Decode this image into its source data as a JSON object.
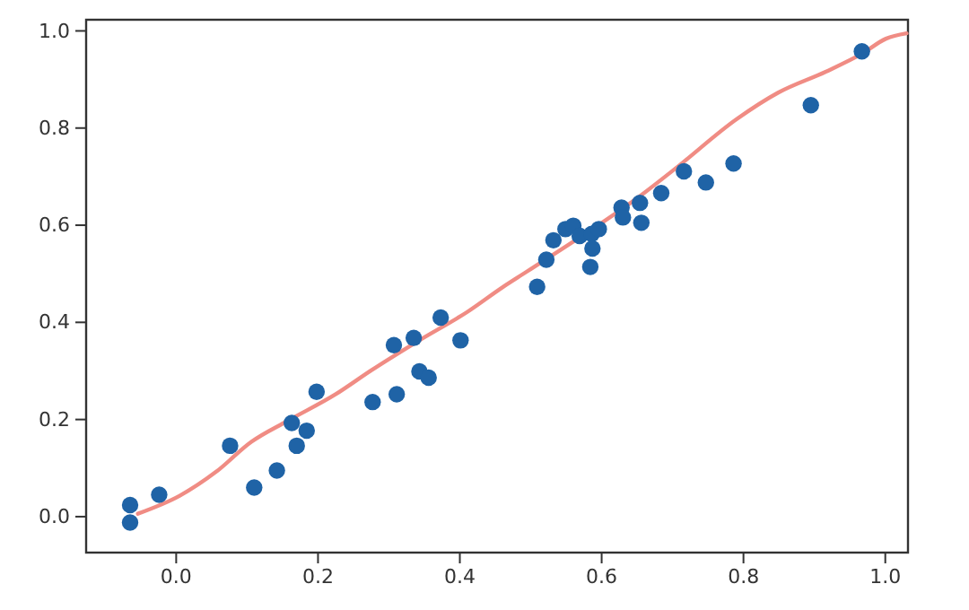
{
  "chart_data": {
    "type": "scatter",
    "xlim": [
      -0.127,
      1.032
    ],
    "ylim": [
      -0.074,
      1.023
    ],
    "xticks": [
      {
        "value": 0,
        "label": "0.0"
      },
      {
        "value": 0.2,
        "label": "0.2"
      },
      {
        "value": 0.4,
        "label": "0.4"
      },
      {
        "value": 0.6,
        "label": "0.6"
      },
      {
        "value": 0.8,
        "label": "0.8"
      },
      {
        "value": 1,
        "label": "1.0"
      }
    ],
    "yticks": [
      {
        "value": 0,
        "label": "0.0"
      },
      {
        "value": 0.2,
        "label": "0.2"
      },
      {
        "value": 0.4,
        "label": "0.4"
      },
      {
        "value": 0.6,
        "label": "0.6"
      },
      {
        "value": 0.8,
        "label": "0.8"
      },
      {
        "value": 1,
        "label": "1.0"
      }
    ],
    "grid": false,
    "series": [
      {
        "type": "line",
        "color": "#f08c84",
        "marker": "none",
        "line_style": "solid",
        "x": [
          -0.054,
          0.005,
          0.056,
          0.106,
          0.157,
          0.225,
          0.275,
          0.343,
          0.41,
          0.461,
          0.494,
          0.663,
          0.706,
          0.79,
          0.849,
          0.916,
          0.967,
          1.001,
          1.03
        ],
        "values": [
          0.006,
          0.043,
          0.092,
          0.154,
          0.197,
          0.252,
          0.301,
          0.363,
          0.421,
          0.473,
          0.504,
          0.67,
          0.719,
          0.818,
          0.873,
          0.916,
          0.953,
          0.984,
          0.995
        ]
      },
      {
        "color": "#1f63a6",
        "marker": "circle",
        "x": [
          -0.065,
          -0.065,
          -0.024,
          0.076,
          0.11,
          0.142,
          0.163,
          0.17,
          0.184,
          0.198,
          0.277,
          0.307,
          0.311,
          0.335,
          0.343,
          0.356,
          0.373,
          0.401,
          0.509,
          0.522,
          0.532,
          0.549,
          0.56,
          0.569,
          0.586,
          0.596,
          0.587,
          0.584,
          0.628,
          0.63,
          0.654,
          0.656,
          0.684,
          0.716,
          0.747,
          0.786,
          0.895,
          0.967
        ],
        "values": [
          0.024,
          -0.012,
          0.045,
          0.146,
          0.06,
          0.095,
          0.193,
          0.146,
          0.177,
          0.257,
          0.236,
          0.353,
          0.252,
          0.368,
          0.299,
          0.286,
          0.41,
          0.363,
          0.473,
          0.529,
          0.569,
          0.592,
          0.599,
          0.578,
          0.582,
          0.592,
          0.552,
          0.514,
          0.636,
          0.616,
          0.646,
          0.605,
          0.666,
          0.711,
          0.688,
          0.727,
          0.847,
          0.958
        ]
      }
    ]
  }
}
